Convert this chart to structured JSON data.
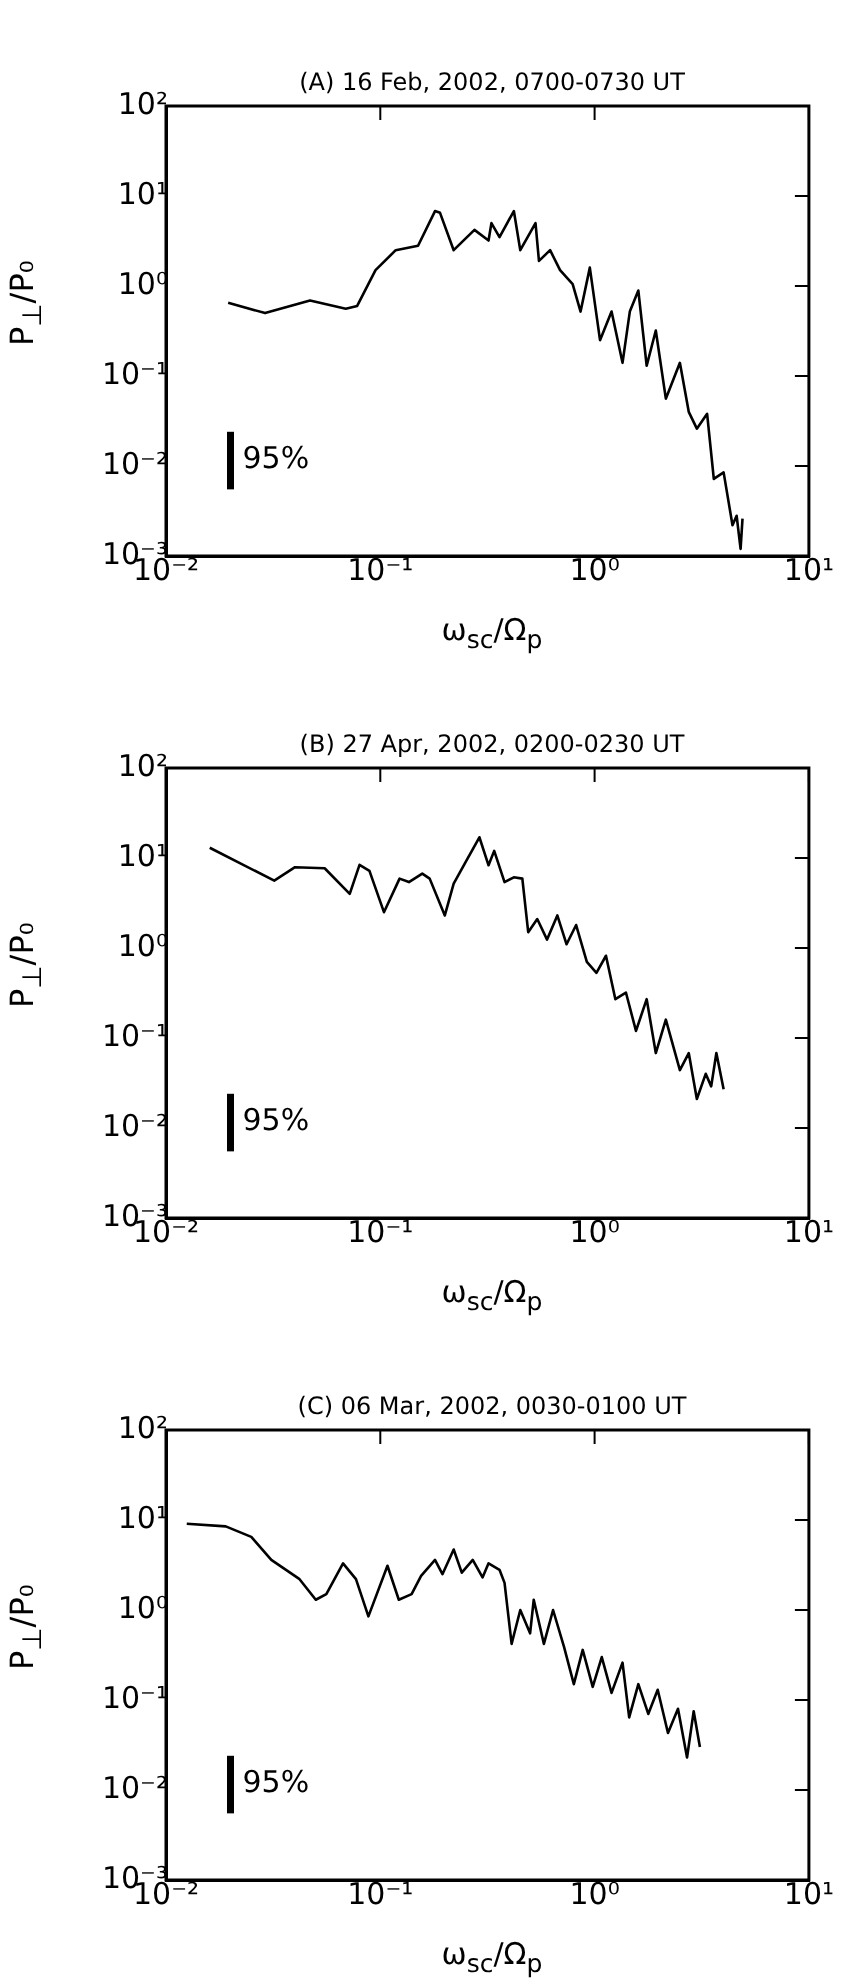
{
  "chart_data": [
    {
      "type": "line",
      "title": "(A) 16 Feb, 2002, 0700-0730 UT",
      "xlabel": "ω$_{sc}$/Ω$_{p}$",
      "ylabel": "P$_{⊥}$/P₀",
      "log": "xy",
      "marker": "none",
      "xlim": [
        0.01,
        10
      ],
      "ylim": [
        0.001,
        100
      ],
      "xticks": [
        {
          "value": 0.01,
          "label": "10⁻²"
        },
        {
          "value": 0.1,
          "label": "10⁻¹"
        },
        {
          "value": 1,
          "label": "10⁰"
        },
        {
          "value": 10,
          "label": "10¹"
        }
      ],
      "yticks": [
        {
          "value": 0.001,
          "label": "10⁻³"
        },
        {
          "value": 0.01,
          "label": "10⁻²"
        },
        {
          "value": 0.1,
          "label": "10⁻¹"
        },
        {
          "value": 1,
          "label": "10⁰"
        },
        {
          "value": 10,
          "label": "10¹"
        },
        {
          "value": 100,
          "label": "10²"
        }
      ],
      "series": [
        {
          "color": "#000000",
          "x": [
            0.0195,
            0.029,
            0.047,
            0.069,
            0.078,
            0.095,
            0.118,
            0.15,
            0.18,
            0.19,
            0.22,
            0.275,
            0.32,
            0.33,
            0.36,
            0.42,
            0.45,
            0.53,
            0.55,
            0.62,
            0.69,
            0.79,
            0.86,
            0.95,
            1.06,
            1.2,
            1.35,
            1.46,
            1.6,
            1.75,
            1.93,
            2.15,
            2.5,
            2.75,
            3.0,
            3.35,
            3.6,
            4.0,
            4.4,
            4.6,
            4.8,
            4.9
          ],
          "values": [
            0.65,
            0.5,
            0.69,
            0.56,
            0.6,
            1.5,
            2.5,
            2.8,
            6.8,
            6.5,
            2.5,
            4.2,
            3.2,
            5,
            3.5,
            6.8,
            2.5,
            5,
            1.9,
            2.5,
            1.5,
            1.05,
            0.52,
            1.6,
            0.25,
            0.52,
            0.14,
            0.52,
            0.89,
            0.13,
            0.32,
            0.056,
            0.14,
            0.04,
            0.026,
            0.038,
            0.0072,
            0.0085,
            0.0022,
            0.0028,
            0.0012,
            0.0026
          ]
        },
        {
          "type": "line",
          "name": "95%",
          "color": "#000000",
          "x": [
            0.02,
            0.02
          ],
          "values": [
            0.0055,
            0.024
          ]
        }
      ]
    },
    {
      "type": "line",
      "title": "(B) 27 Apr, 2002, 0200-0230 UT",
      "xlabel": "ω$_{sc}$/Ω$_{p}$",
      "ylabel": "P$_{⊥}$/P₀",
      "log": "xy",
      "marker": "none",
      "xlim": [
        0.01,
        10
      ],
      "ylim": [
        0.001,
        100
      ],
      "xticks": [
        {
          "value": 0.01,
          "label": "10⁻²"
        },
        {
          "value": 0.1,
          "label": "10⁻¹"
        },
        {
          "value": 1,
          "label": "10⁰"
        },
        {
          "value": 10,
          "label": "10¹"
        }
      ],
      "yticks": [
        {
          "value": 0.001,
          "label": "10⁻³"
        },
        {
          "value": 0.01,
          "label": "10⁻²"
        },
        {
          "value": 0.1,
          "label": "10⁻¹"
        },
        {
          "value": 1,
          "label": "10⁰"
        },
        {
          "value": 10,
          "label": "10¹"
        },
        {
          "value": 100,
          "label": "10²"
        }
      ],
      "series": [
        {
          "color": "#000000",
          "x": [
            0.016,
            0.032,
            0.04,
            0.055,
            0.072,
            0.08,
            0.089,
            0.104,
            0.123,
            0.136,
            0.157,
            0.17,
            0.2,
            0.22,
            0.25,
            0.29,
            0.32,
            0.34,
            0.38,
            0.42,
            0.46,
            0.49,
            0.54,
            0.6,
            0.67,
            0.74,
            0.82,
            0.92,
            1.02,
            1.13,
            1.25,
            1.4,
            1.56,
            1.75,
            1.93,
            2.15,
            2.5,
            2.75,
            3.0,
            3.3,
            3.5,
            3.7,
            4.0
          ],
          "values": [
            13,
            5.6,
            7.9,
            7.7,
            4,
            8.4,
            7.2,
            2.5,
            5.9,
            5.4,
            6.7,
            5.9,
            2.3,
            5.2,
            9,
            17,
            8.3,
            12,
            5.4,
            6.1,
            5.9,
            1.5,
            2.1,
            1.24,
            2.3,
            1.1,
            1.8,
            0.7,
            0.53,
            0.82,
            0.27,
            0.32,
            0.12,
            0.27,
            0.068,
            0.16,
            0.044,
            0.068,
            0.021,
            0.04,
            0.029,
            0.068,
            0.027
          ]
        },
        {
          "type": "line",
          "name": "95%",
          "color": "#000000",
          "x": [
            0.02,
            0.02
          ],
          "values": [
            0.0055,
            0.024
          ]
        }
      ]
    },
    {
      "type": "line",
      "title": "(C) 06 Mar, 2002, 0030-0100 UT",
      "xlabel": "ω$_{sc}$/Ω$_{p}$",
      "ylabel": "P$_{⊥}$/P₀",
      "log": "xy",
      "marker": "none",
      "xlim": [
        0.01,
        10
      ],
      "ylim": [
        0.001,
        100
      ],
      "xticks": [
        {
          "value": 0.01,
          "label": "10⁻²"
        },
        {
          "value": 0.1,
          "label": "10⁻¹"
        },
        {
          "value": 1,
          "label": "10⁰"
        },
        {
          "value": 10,
          "label": "10¹"
        }
      ],
      "yticks": [
        {
          "value": 0.001,
          "label": "10⁻³"
        },
        {
          "value": 0.01,
          "label": "10⁻²"
        },
        {
          "value": 0.1,
          "label": "10⁻¹"
        },
        {
          "value": 1,
          "label": "10⁰"
        },
        {
          "value": 10,
          "label": "10¹"
        },
        {
          "value": 100,
          "label": "10²"
        }
      ],
      "series": [
        {
          "color": "#000000",
          "x": [
            0.0125,
            0.019,
            0.025,
            0.031,
            0.042,
            0.05,
            0.056,
            0.067,
            0.077,
            0.088,
            0.108,
            0.122,
            0.14,
            0.155,
            0.18,
            0.195,
            0.22,
            0.24,
            0.27,
            0.3,
            0.32,
            0.36,
            0.38,
            0.41,
            0.45,
            0.5,
            0.52,
            0.58,
            0.64,
            0.72,
            0.8,
            0.88,
            0.98,
            1.08,
            1.2,
            1.35,
            1.45,
            1.6,
            1.78,
            1.97,
            2.2,
            2.45,
            2.7,
            2.9,
            3.1
          ],
          "values": [
            9.1,
            8.5,
            6.5,
            3.6,
            2.2,
            1.3,
            1.5,
            3.3,
            2.2,
            0.85,
            3.1,
            1.3,
            1.5,
            2.4,
            3.6,
            2.5,
            4.7,
            2.6,
            3.6,
            2.3,
            3.3,
            2.8,
            2,
            0.42,
            1,
            0.55,
            1.3,
            0.42,
            1,
            0.39,
            0.15,
            0.36,
            0.14,
            0.3,
            0.12,
            0.26,
            0.064,
            0.15,
            0.07,
            0.13,
            0.043,
            0.08,
            0.023,
            0.075,
            0.03
          ]
        },
        {
          "type": "line",
          "name": "95%",
          "color": "#000000",
          "x": [
            0.02,
            0.02
          ],
          "values": [
            0.0055,
            0.024
          ]
        }
      ]
    }
  ]
}
